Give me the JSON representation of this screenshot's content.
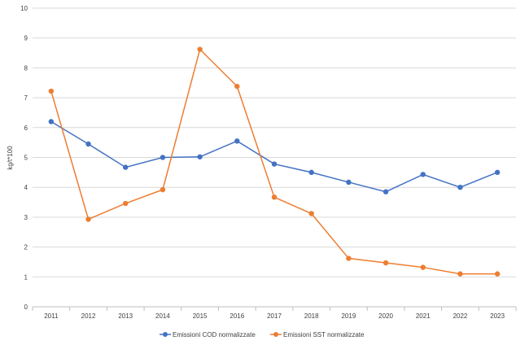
{
  "chart_data": {
    "type": "line",
    "title": "",
    "xlabel": "",
    "ylabel": "kg/t*100",
    "ylim": [
      0,
      10
    ],
    "y_ticks": [
      0,
      1,
      2,
      3,
      4,
      5,
      6,
      7,
      8,
      9,
      10
    ],
    "grid": true,
    "legend_position": "bottom",
    "categories": [
      "2011",
      "2012",
      "2013",
      "2014",
      "2015",
      "2016",
      "2017",
      "2018",
      "2019",
      "2020",
      "2021",
      "2022",
      "2023"
    ],
    "series": [
      {
        "name": "Emissioni COD normalizzate",
        "color": "#4472C4",
        "values": [
          6.2,
          5.45,
          4.67,
          5.0,
          5.02,
          5.55,
          4.78,
          4.5,
          4.17,
          3.85,
          4.43,
          4.0,
          4.5
        ]
      },
      {
        "name": "Emissioni SST normalizzate",
        "color": "#ED7D31",
        "values": [
          7.22,
          2.93,
          3.46,
          3.92,
          8.62,
          7.38,
          3.67,
          3.12,
          1.62,
          1.47,
          1.32,
          1.1,
          1.1
        ]
      }
    ]
  }
}
